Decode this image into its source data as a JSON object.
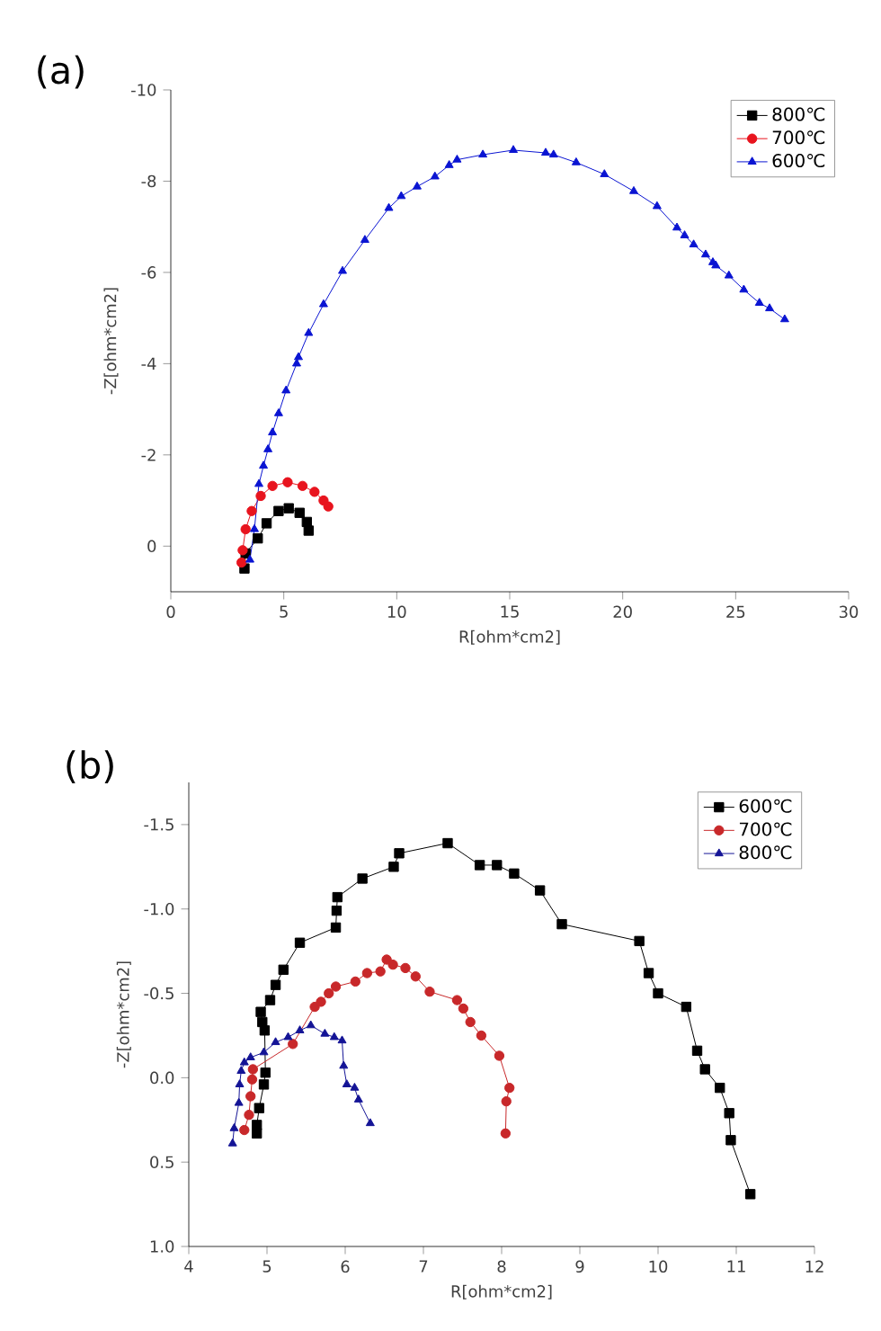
{
  "chart_data": [
    {
      "type": "line",
      "title": "(a)",
      "xlabel": "R[ohm*cm2]",
      "ylabel": "-Z[ohm*cm2]",
      "xlim": [
        0,
        30
      ],
      "ylim": [
        1,
        -10
      ],
      "xticks": [
        0,
        5,
        10,
        15,
        20,
        25,
        30
      ],
      "yticks": [
        0,
        -2,
        -4,
        -6,
        -8,
        -10
      ],
      "legend": "top right",
      "grid": false,
      "series": [
        {
          "name": "800℃",
          "color": "#000000",
          "marker": "square",
          "x": [
            3.26,
            3.31,
            3.85,
            4.24,
            4.77,
            5.22,
            5.7,
            6.02,
            6.1
          ],
          "values": [
            0.49,
            0.16,
            -0.17,
            -0.5,
            -0.77,
            -0.83,
            -0.73,
            -0.53,
            -0.34
          ]
        },
        {
          "name": "700℃",
          "color": "#e8141e",
          "marker": "circle",
          "x": [
            3.13,
            3.18,
            3.31,
            3.58,
            3.98,
            4.5,
            5.17,
            5.83,
            6.36,
            6.76,
            6.97
          ],
          "values": [
            0.36,
            0.09,
            -0.37,
            -0.77,
            -1.1,
            -1.32,
            -1.4,
            -1.32,
            -1.19,
            -1.0,
            -0.87
          ]
        },
        {
          "name": "600℃",
          "color": "#0a14d2",
          "marker": "triangle",
          "x": [
            3.5,
            3.7,
            3.9,
            4.1,
            4.3,
            4.5,
            4.77,
            5.1,
            5.57,
            5.65,
            6.1,
            6.76,
            7.6,
            8.59,
            9.65,
            10.2,
            10.9,
            11.69,
            12.32,
            12.67,
            13.81,
            15.16,
            16.59,
            16.94,
            17.94,
            19.19,
            20.49,
            21.52,
            22.4,
            22.74,
            23.14,
            23.67,
            23.99,
            24.12,
            24.7,
            25.36,
            26.05,
            26.5,
            27.17
          ],
          "values": [
            0.3,
            -0.37,
            -1.36,
            -1.76,
            -2.12,
            -2.49,
            -2.91,
            -3.41,
            -4.0,
            -4.14,
            -4.67,
            -5.3,
            -6.03,
            -6.71,
            -7.41,
            -7.67,
            -7.88,
            -8.1,
            -8.35,
            -8.47,
            -8.58,
            -8.68,
            -8.62,
            -8.58,
            -8.41,
            -8.15,
            -7.78,
            -7.45,
            -6.98,
            -6.81,
            -6.61,
            -6.39,
            -6.22,
            -6.15,
            -5.93,
            -5.62,
            -5.33,
            -5.21,
            -4.97
          ]
        }
      ]
    },
    {
      "type": "line",
      "title": "(b)",
      "xlabel": "R[ohm*cm2]",
      "ylabel": "-Z[ohm*cm2]",
      "xlim": [
        4,
        12
      ],
      "ylim": [
        1.0,
        -1.75
      ],
      "xticks": [
        4,
        5,
        6,
        7,
        8,
        9,
        10,
        11,
        12
      ],
      "yticks": [
        {
          "value": -1.5,
          "label": "-1.5"
        },
        {
          "value": -1.0,
          "label": "-1.0"
        },
        {
          "value": -0.5,
          "label": "-0.5"
        },
        {
          "value": 0.0,
          "label": "0.0"
        },
        {
          "value": 0.5,
          "label": "0.5"
        },
        {
          "value": 1.0,
          "label": "1.0"
        }
      ],
      "legend": "top right",
      "grid": false,
      "series": [
        {
          "name": "600℃",
          "color": "#000000",
          "marker": "square",
          "x": [
            4.87,
            4.87,
            4.9,
            4.96,
            4.98,
            4.97,
            4.94,
            4.92,
            5.04,
            5.11,
            5.21,
            5.42,
            5.88,
            5.89,
            5.9,
            6.22,
            6.62,
            6.69,
            7.31,
            7.72,
            7.94,
            8.16,
            8.49,
            8.77,
            9.76,
            9.88,
            10.0,
            10.36,
            10.5,
            10.6,
            10.79,
            10.91,
            10.93,
            11.18
          ],
          "values": [
            0.33,
            0.28,
            0.18,
            0.04,
            -0.03,
            -0.28,
            -0.33,
            -0.39,
            -0.46,
            -0.55,
            -0.64,
            -0.8,
            -0.89,
            -0.99,
            -1.07,
            -1.18,
            -1.25,
            -1.33,
            -1.39,
            -1.26,
            -1.26,
            -1.21,
            -1.11,
            -0.91,
            -0.81,
            -0.62,
            -0.5,
            -0.42,
            -0.16,
            -0.05,
            0.06,
            0.21,
            0.37,
            0.69
          ]
        },
        {
          "name": "700℃",
          "color": "#c8282a",
          "marker": "circle",
          "x": [
            4.71,
            4.77,
            4.79,
            4.81,
            4.82,
            5.33,
            5.61,
            5.69,
            5.79,
            5.88,
            6.13,
            6.28,
            6.45,
            6.53,
            6.61,
            6.77,
            6.9,
            7.08,
            7.43,
            7.51,
            7.6,
            7.74,
            7.97,
            8.1,
            8.06,
            8.05
          ],
          "values": [
            0.31,
            0.22,
            0.11,
            0.01,
            -0.05,
            -0.2,
            -0.42,
            -0.45,
            -0.5,
            -0.54,
            -0.57,
            -0.62,
            -0.63,
            -0.7,
            -0.67,
            -0.65,
            -0.6,
            -0.51,
            -0.46,
            -0.41,
            -0.33,
            -0.25,
            -0.13,
            0.06,
            0.14,
            0.33
          ]
        },
        {
          "name": "800℃",
          "color": "#141496",
          "marker": "triangle",
          "x": [
            4.56,
            4.58,
            4.64,
            4.65,
            4.67,
            4.71,
            4.79,
            4.96,
            5.11,
            5.27,
            5.42,
            5.56,
            5.74,
            5.86,
            5.96,
            5.98,
            6.02,
            6.12,
            6.17,
            6.32
          ],
          "values": [
            0.39,
            0.3,
            0.15,
            0.04,
            -0.04,
            -0.09,
            -0.12,
            -0.15,
            -0.21,
            -0.24,
            -0.28,
            -0.31,
            -0.26,
            -0.24,
            -0.22,
            -0.07,
            0.04,
            0.06,
            0.13,
            0.27
          ]
        }
      ]
    }
  ]
}
